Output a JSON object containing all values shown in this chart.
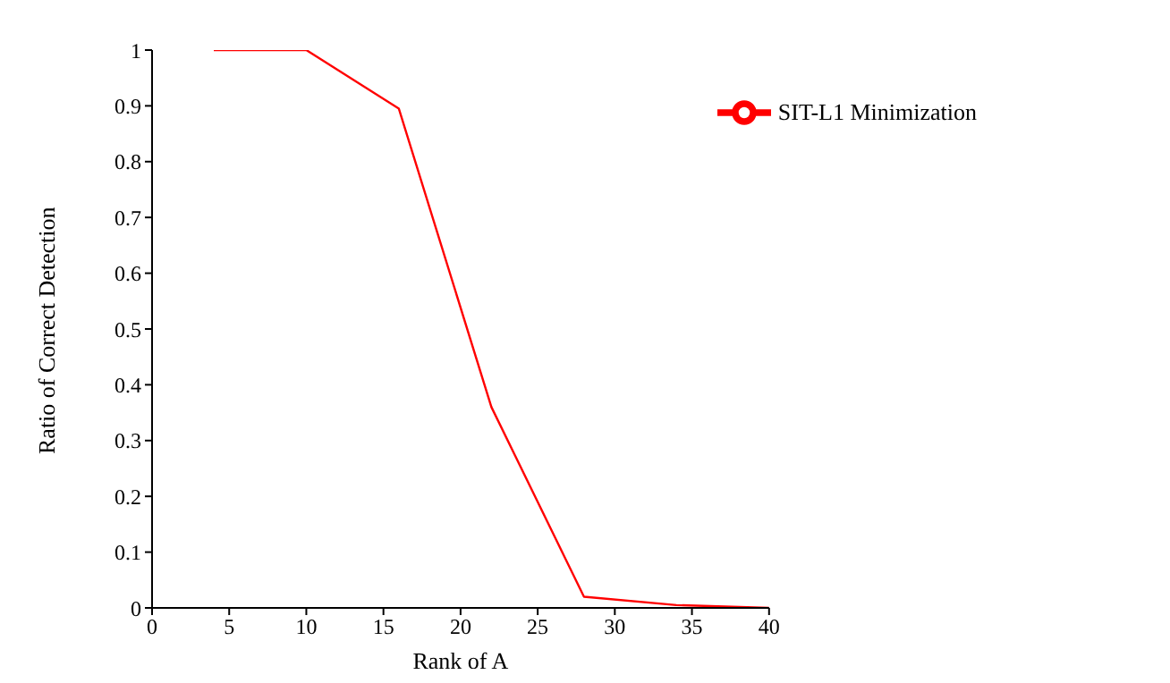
{
  "chart_data": {
    "type": "line",
    "xlabel": "Rank of A",
    "ylabel": "Ratio of Correct Detection",
    "x": [
      4,
      10,
      16,
      22,
      28,
      34,
      40
    ],
    "series": [
      {
        "name": "SIT-L1 Minimization",
        "color": "#ff0000",
        "values": [
          1,
          1,
          0.895,
          0.36,
          0.02,
          0.005,
          0
        ]
      }
    ],
    "xlim": [
      0,
      40
    ],
    "xticks": [
      0,
      5,
      10,
      15,
      20,
      25,
      30,
      35,
      40
    ],
    "ylim": [
      0,
      1
    ],
    "yticks": [
      0,
      0.1,
      0.2,
      0.3,
      0.4,
      0.5,
      0.6,
      0.7,
      0.8,
      0.9,
      1
    ],
    "grid": false,
    "legend": "top right",
    "marker": "none",
    "line_style": "solid"
  }
}
